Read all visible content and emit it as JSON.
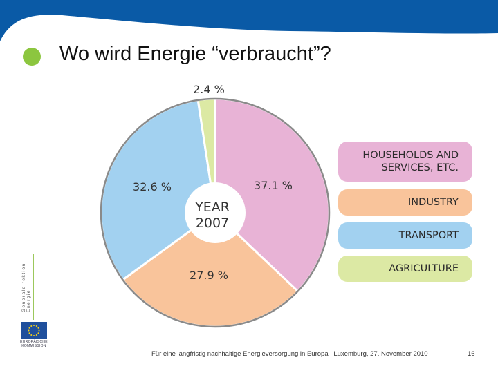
{
  "slide": {
    "title": "Wo wird Energie “verbraucht”?",
    "footer": "Für eine langfristig nachhaltige Energieversorgung in Europa   |   Luxemburg, 27. November 2010",
    "page_number": "16",
    "logo_vertical_text": "Generaldirektion Energie",
    "logo_caption": "EUROPÄISCHE KOMMISSION",
    "bullet_color": "#8cc63f",
    "header_color": "#0a5aa6"
  },
  "chart_data": {
    "type": "pie",
    "center_label_line1": "YEAR",
    "center_label_line2": "2007",
    "slices": [
      {
        "name": "HOUSEHOLDS AND SERVICES, ETC.",
        "value": 37.1,
        "label": "37.1 %",
        "color": "#e8b3d6"
      },
      {
        "name": "INDUSTRY",
        "value": 27.9,
        "label": "27.9 %",
        "color": "#f9c49b"
      },
      {
        "name": "TRANSPORT",
        "value": 32.6,
        "label": "32.6 %",
        "color": "#a2d1f0"
      },
      {
        "name": "AGRICULTURE",
        "value": 2.4,
        "label": "2.4 %",
        "color": "#dce9a4"
      }
    ]
  }
}
